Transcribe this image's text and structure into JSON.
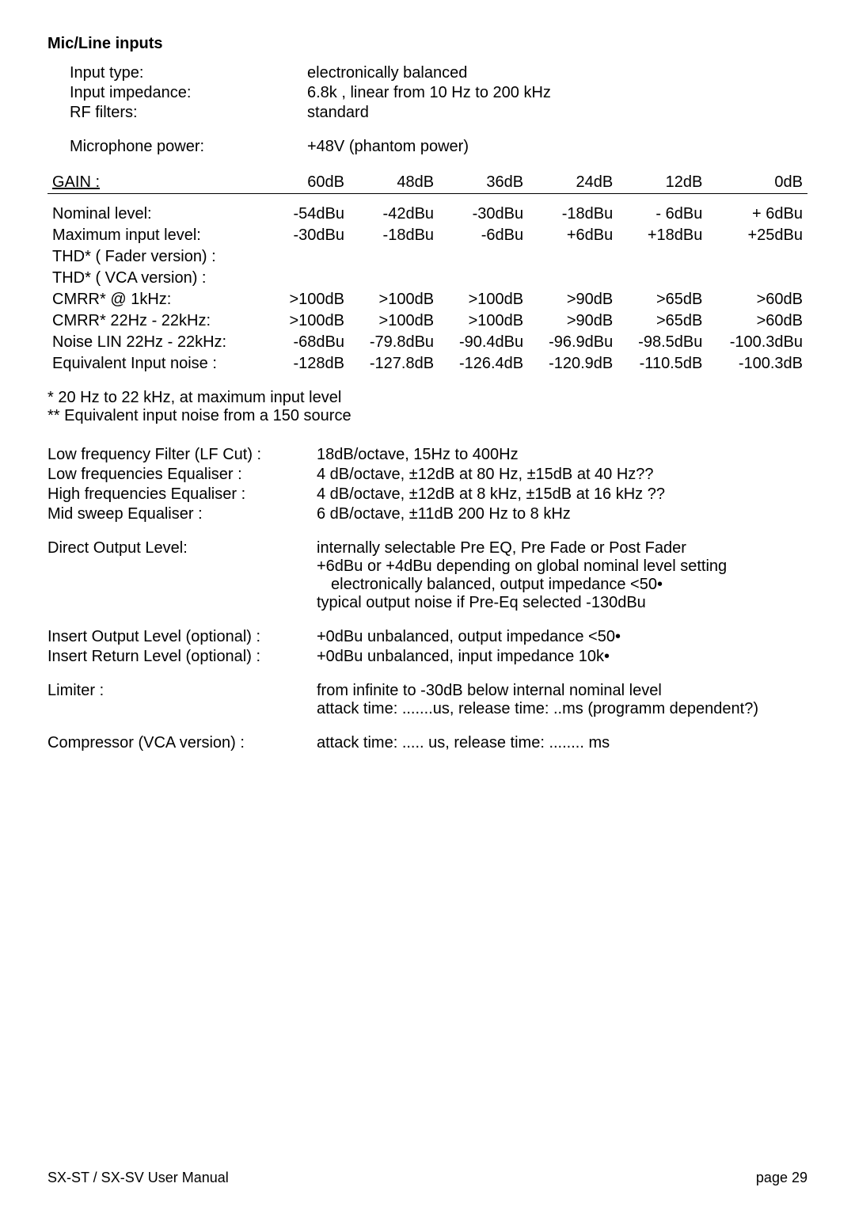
{
  "colors": {
    "text": "#000000",
    "bg": "#ffffff"
  },
  "fonts": {
    "body_pt": 20,
    "footer_pt": 18
  },
  "section_title": "Mic/Line inputs",
  "intro": [
    {
      "label": "Input type:",
      "value": "electronically balanced"
    },
    {
      "label": "Input impedance:",
      "value": "6.8k   , linear from 10 Hz to 200 kHz"
    },
    {
      "label": "RF filters:",
      "value": "standard"
    }
  ],
  "mic_power": {
    "label": "Microphone power:",
    "value": "+48V (phantom power)"
  },
  "gain_table": {
    "header_label": "GAIN :",
    "columns": [
      "60dB",
      "48dB",
      "36dB",
      "24dB",
      "12dB",
      "0dB"
    ],
    "rows": [
      {
        "label": "Nominal level:",
        "cells": [
          "-54dBu",
          "-42dBu",
          "-30dBu",
          "-18dBu",
          "- 6dBu",
          "+ 6dBu"
        ]
      },
      {
        "label": "Maximum input level:",
        "cells": [
          "-30dBu",
          "-18dBu",
          "-6dBu",
          "+6dBu",
          "+18dBu",
          "+25dBu"
        ]
      },
      {
        "label": "THD* ( Fader version) :",
        "cells": [
          "",
          "",
          "",
          "",
          "",
          ""
        ]
      },
      {
        "label": "THD* ( VCA version) :",
        "cells": [
          "",
          "",
          "",
          "",
          "",
          ""
        ]
      },
      {
        "label": "CMRR* @ 1kHz:",
        "cells": [
          ">100dB",
          ">100dB",
          ">100dB",
          ">90dB",
          ">65dB",
          ">60dB"
        ]
      },
      {
        "label": "CMRR* 22Hz - 22kHz:",
        "cells": [
          ">100dB",
          ">100dB",
          ">100dB",
          ">90dB",
          ">65dB",
          ">60dB"
        ]
      },
      {
        "label": "Noise LIN 22Hz - 22kHz:",
        "cells": [
          "-68dBu",
          "-79.8dBu",
          "-90.4dBu",
          "-96.9dBu",
          "-98.5dBu",
          "-100.3dBu"
        ]
      },
      {
        "label": "Equivalent Input noise :",
        "cells": [
          "-128dB",
          "-127.8dB",
          "-126.4dB",
          "-120.9dB",
          "-110.5dB",
          "-100.3dB"
        ]
      }
    ]
  },
  "footnotes": [
    "*    20 Hz to 22 kHz, at maximum input level",
    "**   Equivalent input noise from a 150     source"
  ],
  "specs": [
    {
      "label": "Low frequency Filter (LF Cut) :",
      "value": "18dB/octave, 15Hz to 400Hz"
    },
    {
      "label": "Low frequencies Equaliser :",
      "value": "4 dB/octave, ±12dB at 80 Hz, ±15dB at 40 Hz??"
    },
    {
      "label": "High frequencies Equaliser :",
      "value": "4 dB/octave, ±12dB at 8 kHz, ±15dB at 16 kHz ??"
    },
    {
      "label": "Mid sweep Equaliser :",
      "value": "6 dB/octave, ±11dB 200 Hz to 8 kHz"
    }
  ],
  "direct_output": {
    "label": "Direct Output Level:",
    "lines": [
      "internally selectable Pre EQ, Pre Fade or Post Fader",
      "+6dBu or +4dBu depending on global nominal level setting",
      "   electronically balanced, output impedance <50•",
      "typical output noise if Pre-Eq selected -130dBu"
    ]
  },
  "insert": [
    {
      "label": "Insert Output Level (optional) :",
      "value": "+0dBu     unbalanced, output impedance <50•"
    },
    {
      "label": "Insert Return Level (optional) :",
      "value": "+0dBu     unbalanced, input impedance 10k•"
    }
  ],
  "limiter": {
    "label": "Limiter :",
    "lines": [
      "from infinite to -30dB below internal nominal level",
      "attack time: .......us, release time: ..ms (programm dependent?)"
    ]
  },
  "compressor": {
    "label": "Compressor (VCA version) :",
    "value": "attack time:  ..... us, release time:  ........ ms"
  },
  "footer": {
    "left": "SX-ST / SX-SV User Manual",
    "right": "page  29"
  }
}
